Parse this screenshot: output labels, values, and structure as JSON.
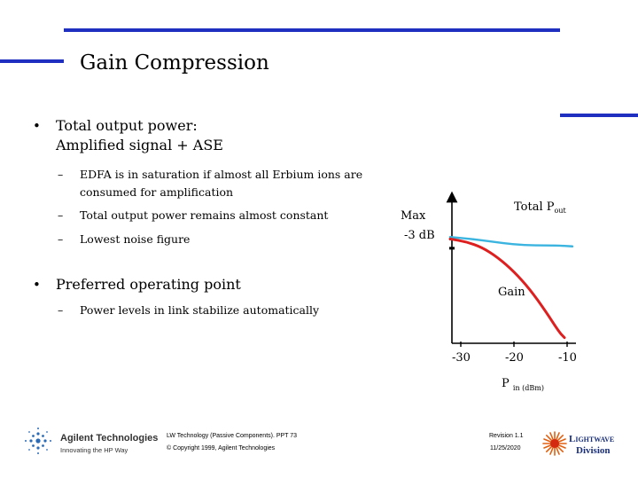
{
  "slide": {
    "title": "Gain Compression",
    "bullets": [
      {
        "text": "Total output power:",
        "line2": "Amplified signal + ASE",
        "subitems": [
          {
            "text": "EDFA is in saturation if almost all Erbium ions are",
            "line2": "consumed for amplification"
          },
          {
            "text": "Total output power remains almost constant"
          },
          {
            "text": "Lowest noise figure"
          }
        ]
      },
      {
        "text": "Preferred operating point",
        "subitems": [
          {
            "text": "Power levels in link stabilize automatically"
          }
        ]
      }
    ]
  },
  "chart_data": {
    "type": "line",
    "x_ticks": [
      "-30",
      "-20",
      "-10"
    ],
    "xlabel_main": "P",
    "xlabel_sub": "in (dBm)",
    "y_markers": [
      "Max",
      "-3 dB"
    ],
    "series": [
      {
        "name": "Total P",
        "name_sub": "out",
        "color": "#3bb4e0",
        "x": [
          -32,
          -28,
          -24,
          -20,
          -16,
          -12,
          -9
        ],
        "y": [
          0.95,
          0.93,
          0.9,
          0.87,
          0.86,
          0.86,
          0.85
        ]
      },
      {
        "name": "Gain",
        "color": "#dd1f1f",
        "x": [
          -32,
          -29,
          -26,
          -23,
          -20,
          -17,
          -14,
          -11.5,
          -10.5
        ],
        "y": [
          0.93,
          0.9,
          0.84,
          0.73,
          0.58,
          0.39,
          0.15,
          -0.07,
          -0.13
        ]
      }
    ]
  },
  "footer": {
    "logo_text": "Agilent Technologies",
    "logo_tagline": "Innovating the HP Way",
    "doc_line1": "LW Technology (Passive Components). PPT   73",
    "doc_line2": "© Copyright 1999, Agilent Technologies",
    "revision": "Revision 1.1",
    "date": "11/25/2020",
    "division_line1": "Lightwave",
    "division_line2": "Division"
  },
  "colors": {
    "accent_bar": "#1f2fc0",
    "total_pout": "#3bb4e0",
    "gain": "#dd1f1f"
  }
}
